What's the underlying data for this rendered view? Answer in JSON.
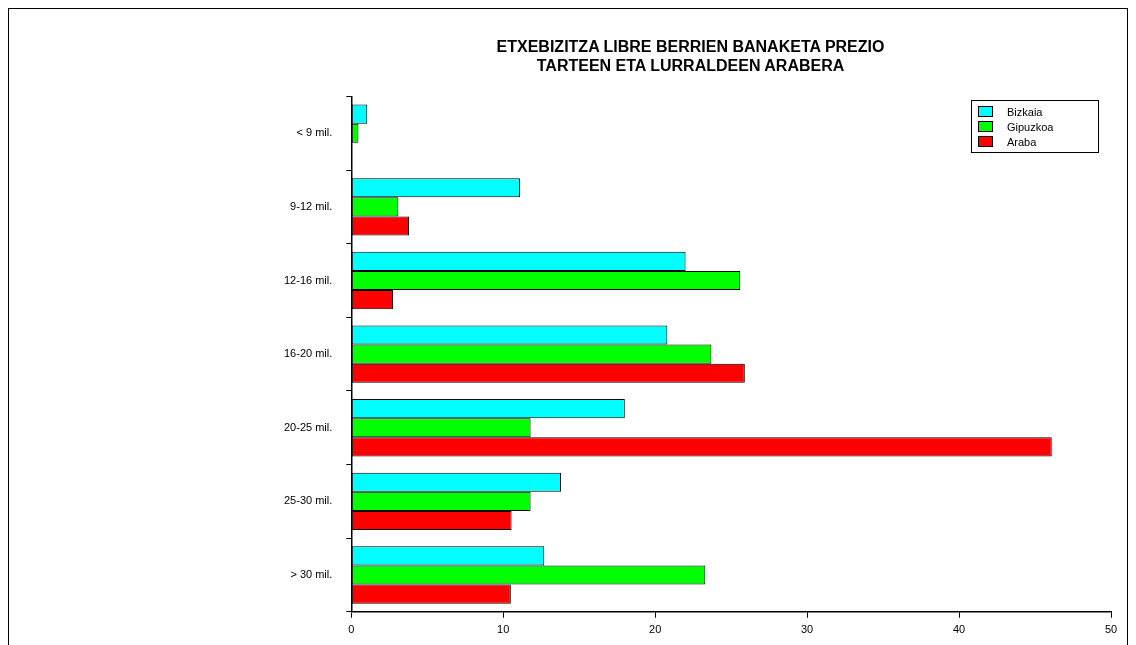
{
  "chart_data": {
    "type": "bar",
    "orientation": "horizontal",
    "title": "ETXEBIZITZA LIBRE BERRIEN BANAKETA PREZIO\nTARTEEN ETA LURRALDEEN ARABERA",
    "categories": [
      "< 9 mil.",
      "9-12 mil.",
      "12-16 mil.",
      "16-20 mil.",
      "20-25 mil.",
      "25-30 mil.",
      "> 30 mil."
    ],
    "series": [
      {
        "name": "Bizkaia",
        "color": "#00ffff",
        "values": [
          1.05,
          11.1,
          22.0,
          20.8,
          18.0,
          13.8,
          12.7
        ]
      },
      {
        "name": "Gipuzkoa",
        "color": "#00ff00",
        "values": [
          0.47,
          3.1,
          25.6,
          23.7,
          11.8,
          11.8,
          23.3
        ]
      },
      {
        "name": "Araba",
        "color": "#ff0000",
        "values": [
          0,
          3.8,
          2.75,
          25.9,
          46.1,
          10.55,
          10.5
        ]
      }
    ],
    "xlim": [
      0,
      50
    ],
    "xticks": [
      0,
      10,
      20,
      30,
      40,
      50
    ],
    "grid": false,
    "legend": "top right"
  }
}
